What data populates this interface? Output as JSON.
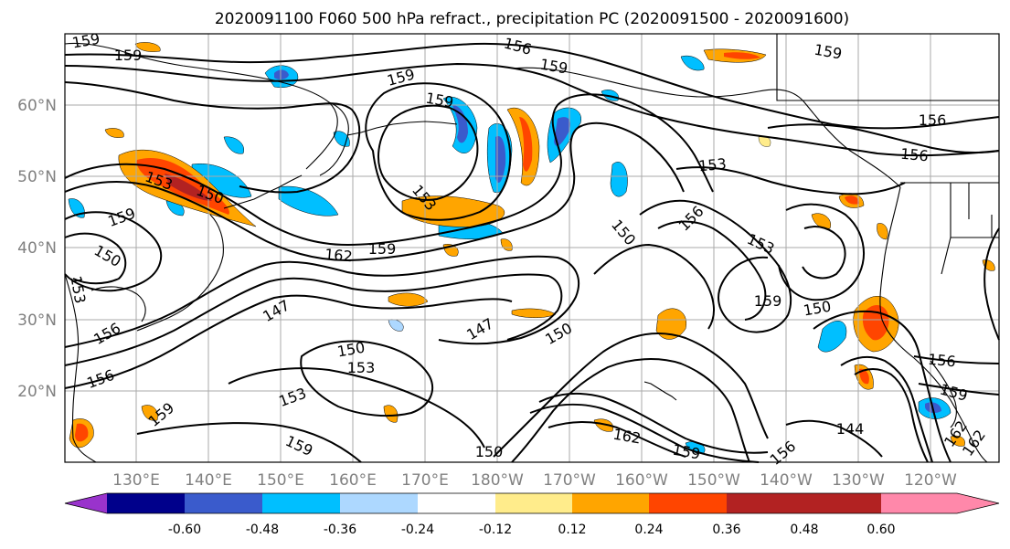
{
  "title": "2020091100 F060 500 hPa refract., precipitation PC (2020091500 - 2020091600)",
  "lon_labels": [
    "130°E",
    "140°E",
    "150°E",
    "160°E",
    "170°E",
    "180°W",
    "170°W",
    "160°W",
    "150°W",
    "140°W",
    "130°W",
    "120°W"
  ],
  "lat_labels": [
    "60°N",
    "50°N",
    "40°N",
    "30°N",
    "20°N"
  ],
  "contour_labels": [
    "159",
    "159",
    "156",
    "159",
    "159",
    "159",
    "162",
    "153",
    "150",
    "159",
    "153",
    "150",
    "162",
    "159",
    "156",
    "153",
    "150",
    "156",
    "153",
    "159",
    "150",
    "147",
    "147",
    "150",
    "153",
    "153",
    "156",
    "159",
    "159",
    "150",
    "156",
    "159",
    "144",
    "162",
    "150",
    "159",
    "156",
    "156",
    "156",
    "162",
    "159",
    "153"
  ],
  "colorbar": {
    "ticks": [
      "-0.60",
      "-0.48",
      "-0.36",
      "-0.24",
      "-0.12",
      "0.12",
      "0.24",
      "0.36",
      "0.48",
      "0.60"
    ],
    "colors": {
      "under": "#9933cc",
      "b1": "#00008b",
      "b2": "#3a5bcc",
      "b3": "#00bfff",
      "b4": "#add8ff",
      "b5": "#ffffff",
      "b6": "#ffec8b",
      "b7": "#ffa500",
      "b8": "#ff4500",
      "b9": "#b22222",
      "over": "#ff88aa"
    }
  }
}
